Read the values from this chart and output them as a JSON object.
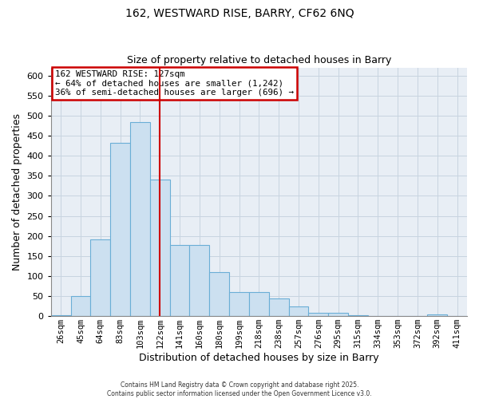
{
  "title1": "162, WESTWARD RISE, BARRY, CF62 6NQ",
  "title2": "Size of property relative to detached houses in Barry",
  "xlabel": "Distribution of detached houses by size in Barry",
  "ylabel": "Number of detached properties",
  "bar_labels": [
    "26sqm",
    "45sqm",
    "64sqm",
    "83sqm",
    "103sqm",
    "122sqm",
    "141sqm",
    "160sqm",
    "180sqm",
    "199sqm",
    "218sqm",
    "238sqm",
    "257sqm",
    "276sqm",
    "295sqm",
    "315sqm",
    "334sqm",
    "353sqm",
    "372sqm",
    "392sqm",
    "411sqm"
  ],
  "bar_values": [
    3,
    50,
    192,
    432,
    484,
    340,
    178,
    178,
    109,
    61,
    61,
    44,
    24,
    9,
    9,
    3,
    1,
    0,
    0,
    4,
    0
  ],
  "bar_color": "#cce0f0",
  "bar_edge_color": "#6aaed6",
  "vline_x": 5,
  "vline_color": "#cc0000",
  "annotation_line1": "162 WESTWARD RISE: 127sqm",
  "annotation_line2": "← 64% of detached houses are smaller (1,242)",
  "annotation_line3": "36% of semi-detached houses are larger (696) →",
  "annotation_box_color": "#cc0000",
  "ylim": [
    0,
    620
  ],
  "yticks": [
    0,
    50,
    100,
    150,
    200,
    250,
    300,
    350,
    400,
    450,
    500,
    550,
    600
  ],
  "bg_color": "#e8eef5",
  "grid_color": "#c8d4e0",
  "footer1": "Contains HM Land Registry data © Crown copyright and database right 2025.",
  "footer2": "Contains public sector information licensed under the Open Government Licence v3.0."
}
